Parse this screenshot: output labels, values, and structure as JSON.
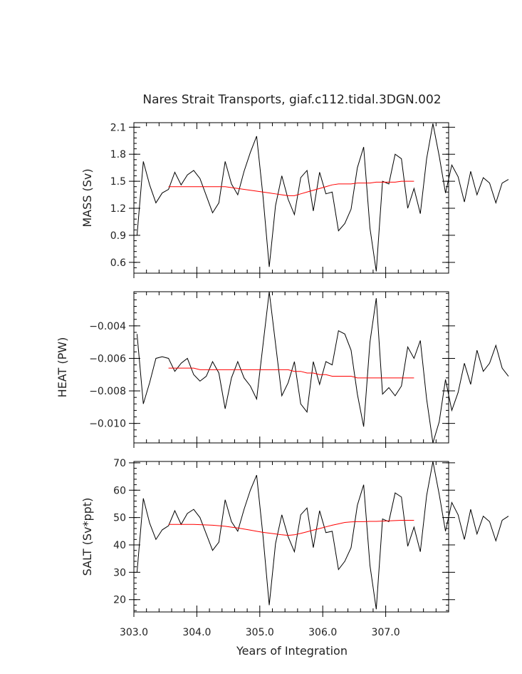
{
  "chart_data": {
    "type": "line",
    "title": "Nares Strait Transports, giaf.c112.tidal.3DGN.002",
    "xlabel": "Years of Integration",
    "xlim": [
      303.0,
      308.0
    ],
    "xticks": [
      303.0,
      304.0,
      305.0,
      306.0,
      307.0
    ],
    "xtick_labels": [
      "303.0",
      "304.0",
      "305.0",
      "306.0",
      "307.0"
    ],
    "x_start": 303.05,
    "x_step": 0.1,
    "panels": [
      {
        "ylabel": "MASS (Sv)",
        "ylim": [
          0.48,
          2.15
        ],
        "yticks": [
          0.6,
          0.9,
          1.2,
          1.5,
          1.8,
          2.1
        ],
        "ytick_labels": [
          "0.6",
          "0.9",
          "1.2",
          "1.5",
          "1.8",
          "2.1"
        ],
        "series": [
          {
            "color": "#000000",
            "values": [
              0.9,
              1.72,
              1.46,
              1.26,
              1.37,
              1.41,
              1.6,
              1.46,
              1.57,
              1.62,
              1.53,
              1.34,
              1.15,
              1.26,
              1.72,
              1.47,
              1.35,
              1.61,
              1.82,
              2.0,
              1.34,
              0.55,
              1.23,
              1.56,
              1.3,
              1.13,
              1.54,
              1.62,
              1.17,
              1.6,
              1.36,
              1.38,
              0.95,
              1.03,
              1.19,
              1.65,
              1.88,
              0.98,
              0.5,
              1.5,
              1.47,
              1.8,
              1.75,
              1.2,
              1.42,
              1.14,
              1.75,
              2.14,
              1.78,
              1.37,
              1.68,
              1.55,
              1.27,
              1.61,
              1.35,
              1.54,
              1.48,
              1.26,
              1.48,
              1.52
            ]
          },
          {
            "color": "#ff0000",
            "values": [
              1.44,
              1.44,
              1.44,
              1.44,
              1.44,
              1.44,
              1.44,
              1.44,
              1.44,
              1.44,
              1.43,
              1.42,
              1.41,
              1.4,
              1.39,
              1.38,
              1.37,
              1.36,
              1.35,
              1.34,
              1.34,
              1.36,
              1.38,
              1.4,
              1.42,
              1.44,
              1.46,
              1.47,
              1.47,
              1.47,
              1.48,
              1.48,
              1.48,
              1.49,
              1.49,
              1.49,
              1.49,
              1.5,
              1.5,
              1.5
            ]
          }
        ]
      },
      {
        "ylabel": "HEAT (PW)",
        "ylim": [
          -0.0112,
          -0.0019
        ],
        "yticks": [
          -0.01,
          -0.008,
          -0.006,
          -0.004
        ],
        "ytick_labels": [
          "−0.010",
          "−0.008",
          "−0.006",
          "−0.004"
        ],
        "series": [
          {
            "color": "#000000",
            "values": [
              -0.0045,
              -0.0088,
              -0.0075,
              -0.006,
              -0.0059,
              -0.006,
              -0.0068,
              -0.0063,
              -0.006,
              -0.007,
              -0.0074,
              -0.0071,
              -0.0062,
              -0.0069,
              -0.0091,
              -0.0072,
              -0.0062,
              -0.0072,
              -0.0077,
              -0.0085,
              -0.0052,
              -0.0019,
              -0.0051,
              -0.0083,
              -0.0075,
              -0.0062,
              -0.0088,
              -0.0093,
              -0.0062,
              -0.0076,
              -0.0062,
              -0.0064,
              -0.0043,
              -0.0045,
              -0.0055,
              -0.0082,
              -0.0102,
              -0.005,
              -0.0023,
              -0.0082,
              -0.0078,
              -0.0083,
              -0.0077,
              -0.0053,
              -0.006,
              -0.0049,
              -0.0085,
              -0.0112,
              -0.0099,
              -0.0073,
              -0.0092,
              -0.0081,
              -0.0063,
              -0.0076,
              -0.0055,
              -0.0068,
              -0.0063,
              -0.0052,
              -0.0066,
              -0.0071
            ]
          },
          {
            "color": "#ff0000",
            "values": [
              -0.0066,
              -0.0066,
              -0.0066,
              -0.0066,
              -0.0066,
              -0.0067,
              -0.0067,
              -0.0067,
              -0.0067,
              -0.0067,
              -0.0067,
              -0.0067,
              -0.0067,
              -0.0067,
              -0.0067,
              -0.0067,
              -0.0067,
              -0.0067,
              -0.0067,
              -0.0067,
              -0.0068,
              -0.0068,
              -0.0069,
              -0.0069,
              -0.007,
              -0.007,
              -0.0071,
              -0.0071,
              -0.0071,
              -0.0071,
              -0.0072,
              -0.0072,
              -0.0072,
              -0.0072,
              -0.0072,
              -0.0072,
              -0.0072,
              -0.0072,
              -0.0072,
              -0.0072
            ]
          }
        ]
      },
      {
        "ylabel": "SALT (Sv*ppt)",
        "ylim": [
          15.5,
          70.5
        ],
        "yticks": [
          20,
          30,
          40,
          50,
          60,
          70
        ],
        "ytick_labels": [
          "20",
          "30",
          "40",
          "50",
          "60",
          "70"
        ],
        "series": [
          {
            "color": "#000000",
            "values": [
              30,
              57,
              48,
              42,
              45.5,
              47,
              52.5,
              47.5,
              51.5,
              53,
              50,
              44,
              38,
              41,
              56.5,
              48.5,
              45,
              53,
              60,
              65.5,
              43.5,
              18,
              40.5,
              51,
              43,
              37.5,
              51,
              53.5,
              39,
              52.5,
              44.5,
              45,
              31,
              34,
              39,
              54.5,
              62,
              32.5,
              16.5,
              49.5,
              48.5,
              59,
              57.5,
              39.5,
              46.5,
              37.5,
              58,
              70.5,
              58.5,
              45,
              55.5,
              51,
              42,
              53,
              44,
              50.5,
              48.5,
              41.5,
              49,
              50.5
            ]
          },
          {
            "color": "#ff0000",
            "values": [
              47.5,
              47.5,
              47.5,
              47.5,
              47.5,
              47.4,
              47.3,
              47.2,
              47,
              46.8,
              46.5,
              46.2,
              45.8,
              45.4,
              45,
              44.6,
              44.3,
              44,
              43.7,
              43.5,
              43.7,
              44.2,
              44.8,
              45.4,
              46,
              46.6,
              47.2,
              47.7,
              48.2,
              48.4,
              48.5,
              48.5,
              48.6,
              48.6,
              48.7,
              48.8,
              48.9,
              49,
              49,
              49
            ]
          }
        ]
      }
    ]
  }
}
